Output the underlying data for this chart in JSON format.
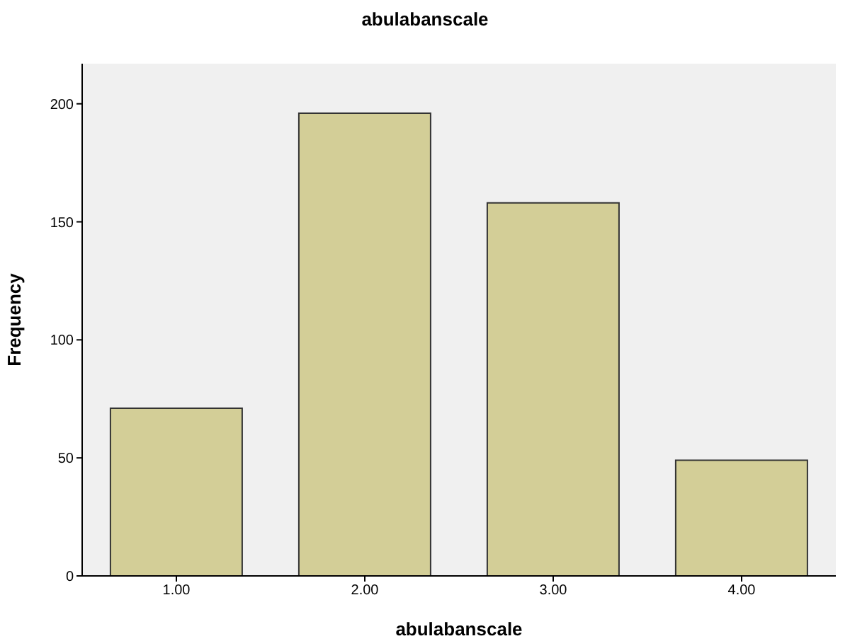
{
  "chart_data": {
    "type": "bar",
    "title": "abulabanscale",
    "xlabel": "abulabanscale",
    "ylabel": "Frequency",
    "categories": [
      "1.00",
      "2.00",
      "3.00",
      "4.00"
    ],
    "values": [
      71,
      196,
      158,
      49
    ],
    "color": "#d3ce97",
    "ylim": [
      0,
      217
    ],
    "yticks": [
      0,
      50,
      100,
      150,
      200
    ],
    "grid": false
  }
}
